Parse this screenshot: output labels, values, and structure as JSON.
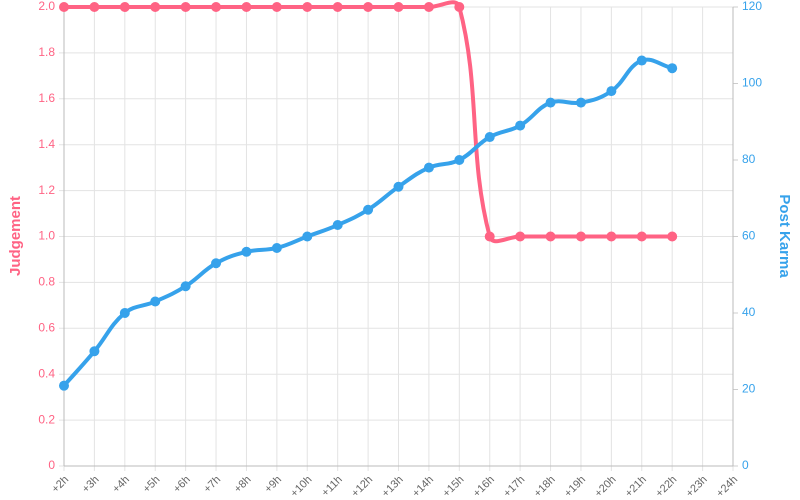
{
  "chart_data": {
    "type": "line",
    "categories": [
      "+2h",
      "+3h",
      "+4h",
      "+5h",
      "+6h",
      "+7h",
      "+8h",
      "+9h",
      "+10h",
      "+11h",
      "+12h",
      "+13h",
      "+14h",
      "+15h",
      "+16h",
      "+17h",
      "+18h",
      "+19h",
      "+20h",
      "+21h",
      "+22h",
      "+23h",
      "+24h"
    ],
    "series": [
      {
        "name": "Judgement",
        "color": "#ff6384",
        "axis": "y",
        "values": [
          2,
          2,
          2,
          2,
          2,
          2,
          2,
          2,
          2,
          2,
          2,
          2,
          2,
          2,
          1,
          1,
          1,
          1,
          1,
          1,
          1,
          null,
          null
        ]
      },
      {
        "name": "Post Karma",
        "color": "#36a2eb",
        "axis": "y2",
        "values": [
          21,
          30,
          40,
          43,
          47,
          53,
          56,
          57,
          60,
          63,
          67,
          73,
          78,
          80,
          86,
          89,
          95,
          95,
          98,
          106,
          104,
          null,
          null
        ]
      }
    ],
    "ylabel": "Judgement",
    "y2label": "Post Karma",
    "ylim": [
      0,
      2
    ],
    "yticks": [
      0,
      0.2,
      0.4,
      0.6,
      0.8,
      {
        "value": 1,
        "label": "1.0"
      },
      1.2,
      1.4,
      1.6,
      1.8,
      {
        "value": 2,
        "label": "2.0"
      }
    ],
    "y2lim": [
      0,
      120
    ],
    "y2ticks": [
      0,
      20,
      40,
      60,
      80,
      100,
      120
    ],
    "grid": true
  }
}
